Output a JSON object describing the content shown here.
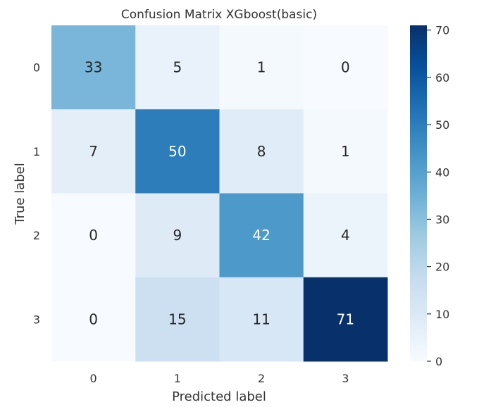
{
  "chart_data": {
    "type": "heatmap",
    "title": "Confusion Matrix XGboost(basic)",
    "xlabel": "Predicted label",
    "ylabel": "True label",
    "x_categories": [
      "0",
      "1",
      "2",
      "3"
    ],
    "y_categories": [
      "0",
      "1",
      "2",
      "3"
    ],
    "values": [
      [
        33,
        5,
        1,
        0
      ],
      [
        7,
        50,
        8,
        1
      ],
      [
        0,
        9,
        42,
        4
      ],
      [
        0,
        15,
        11,
        71
      ]
    ],
    "colormap": "Blues",
    "colorbar": {
      "range": [
        0,
        71
      ],
      "ticks": [
        0,
        10,
        20,
        30,
        40,
        50,
        60,
        70
      ],
      "tick_labels": [
        "0",
        "10",
        "20",
        "30",
        "40",
        "50",
        "60",
        "70"
      ]
    },
    "grid": false,
    "legend": "colorbar-right"
  }
}
